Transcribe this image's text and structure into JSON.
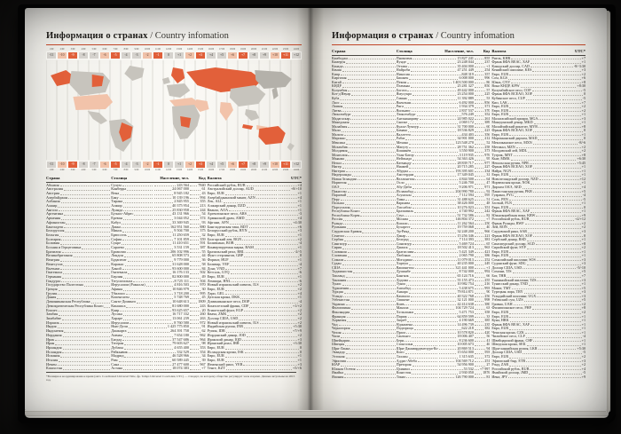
{
  "colors": {
    "accent": "#c6492a",
    "zone_orange": "#e2603a",
    "zone_peach": "#f2c3aa"
  },
  "title": {
    "ru": "Информация о странах",
    "en": "/ Country infomation"
  },
  "timezone": {
    "times": [
      "1:00",
      "2:00",
      "3:00",
      "4:00",
      "5:00",
      "6:00",
      "7:00",
      "8:00",
      "9:00",
      "10:00",
      "11:00",
      "12:00",
      "13:00",
      "14:00",
      "15:00",
      "16:00",
      "17:00",
      "18:00",
      "19:00",
      "20:00",
      "21:00",
      "22:00",
      "23:00",
      "24:00"
    ],
    "offsets": [
      "-11",
      "-10",
      "-9",
      "-8",
      "-7",
      "-6",
      "-5",
      "-4",
      "-3",
      "-2",
      "-1",
      "0",
      "+1",
      "+2",
      "+3",
      "+4",
      "+5",
      "+6",
      "+7",
      "+8",
      "+9",
      "+10",
      "+11",
      "+12"
    ],
    "highlight_strong": [
      "-9",
      "-5",
      "-1",
      "+3",
      "+7",
      "+11"
    ],
    "highlight_light": [
      "-10",
      "-6",
      "-2",
      "+2",
      "+6",
      "+10"
    ]
  },
  "table": {
    "headers": [
      "Страна",
      "Столица",
      "Население, чел.",
      "Код",
      "Валюта",
      "UTC*"
    ]
  },
  "left_page": {
    "rows": [
      [
        "Абхазия",
        "Сухум",
        "243 564",
        "7840",
        "Российский рубль, RUB",
        "+4"
      ],
      [
        "Австралия",
        "Канберра",
        "24 067 000",
        "61",
        "Австралийский доллар, AUD",
        "+8/+10"
      ],
      [
        "Австрия",
        "Вена",
        "8 945 182",
        "43",
        "Евро, EUR",
        "+1"
      ],
      [
        "Азербайджан",
        "Баку",
        "10 139 196",
        "994",
        "Азербайджанский манат, AZN",
        "+4"
      ],
      [
        "Албания",
        "Тирана",
        "2 845 955",
        "355",
        "Лек, ALL",
        "+1"
      ],
      [
        "Алжир",
        "Алжир",
        "40 375 954",
        "213",
        "Алжирский динар, DZD",
        "+1"
      ],
      [
        "Ангола",
        "Луанда",
        "25 830 958",
        "244",
        "Кванза, AOA",
        "+1"
      ],
      [
        "Аргентина",
        "Буэнос-Айрес",
        "43 131 966",
        "54",
        "Аргентинское песо, ARS",
        "-3"
      ],
      [
        "Армения",
        "Ереван",
        "3 044 052",
        "374",
        "Армянский драм, AMD",
        "+4"
      ],
      [
        "Афганистан",
        "Кабул",
        "33 369 945",
        "93",
        "Афгани, AFN",
        "+4:30"
      ],
      [
        "Бангладеш",
        "Дакка",
        "162 951 560",
        "880",
        "Бангладешская така, BDT",
        "+6"
      ],
      [
        "Белоруссия",
        "Минск",
        "9 504 700",
        "375",
        "Белорусский рубль, BYN",
        "+3"
      ],
      [
        "Бельгия",
        "Брюссель",
        "11 250 659",
        "32",
        "Евро, EUR",
        "+1"
      ],
      [
        "Болгария",
        "София",
        "7 101 859",
        "359",
        "Болгарский лев, BGN",
        "+2"
      ],
      [
        "Боливия",
        "Сукре",
        "11 410 651",
        "591",
        "Боливиано, BOB",
        "-4"
      ],
      [
        "Босния и Герцеговина",
        "Сараево",
        "3 531 159",
        "387",
        "Конвертируемая марка, BAM",
        "+1"
      ],
      [
        "Бразилия",
        "Бразилиа",
        "206 102 996",
        "55",
        "Бразильский реал, BRL",
        "-2/-5"
      ],
      [
        "Великобритания",
        "Лондон",
        "65 808 573",
        "44",
        "Фунт стерлингов, GBP",
        "0"
      ],
      [
        "Венгрия",
        "Будапешт",
        "9 779 000",
        "36",
        "Форинт, HUF",
        "+1"
      ],
      [
        "Венесуэла",
        "Каракас",
        "31 628 000",
        "58",
        "Боливар, VEF",
        "-4"
      ],
      [
        "Вьетнам",
        "Ханой",
        "93 600 000",
        "84",
        "Донг, VND",
        "+7"
      ],
      [
        "Гватемала",
        "Гватемала",
        "16 176 133",
        "502",
        "Кетсаль, GTQ",
        "-6"
      ],
      [
        "Германия",
        "Берлин",
        "82 800 000",
        "49",
        "Евро, EUR",
        "+1"
      ],
      [
        "Гондурас",
        "Тегусигальпа",
        "8 725 111",
        "504",
        "Лемпира, HNL",
        "-6"
      ],
      [
        "Государство Палестина",
        "Иерусалим (Рамалла)",
        "4 816 503",
        "970",
        "Новый израильский шекель, ILS",
        "+2"
      ],
      [
        "Греция",
        "Афины",
        "10 846 979",
        "30",
        "Евро, EUR",
        "+2"
      ],
      [
        "Грузия",
        "Тбилиси",
        "3 718 200",
        "995",
        "Лари, GEL",
        "+4"
      ],
      [
        "Дания",
        "Копенгаген",
        "5 748 769",
        "45",
        "Датская крона, DKK",
        "+1"
      ],
      [
        "Доминиканская Республика",
        "Санто-Доминго",
        "10 648 613",
        "1809",
        "Доминиканское песо, DOP",
        "-4"
      ],
      [
        "Демократическая Республика Конго",
        "Киншаса",
        "81 680 000",
        "243",
        "Конголезский франк, CDF",
        "+1/+2"
      ],
      [
        "Египет",
        "Каир",
        "93 625 657",
        "20",
        "Египетский фунт, EGP",
        "+2"
      ],
      [
        "Замбия",
        "Лусака",
        "16 717 332",
        "260",
        "Квача, ZMK",
        "+2"
      ],
      [
        "Зимбабве",
        "Хараре",
        "13 061 239",
        "263",
        "Доллар США, USD",
        "+2"
      ],
      [
        "Израиль",
        "Иерусалим",
        "8 760 580",
        "972",
        "Новый израильский шекель, ILS",
        "+2"
      ],
      [
        "Индия",
        "Нью-Дели",
        "1 425 775 850",
        "91",
        "Индийская рупия, INR",
        "+5:30"
      ],
      [
        "Индонезия",
        "Джакарта",
        "264 391 758",
        "62",
        "Рупия, IDR",
        "+7/+9"
      ],
      [
        "Иордания",
        "Амман",
        "7 654 180",
        "962",
        "Иорданский динар, JOD",
        "+2"
      ],
      [
        "Ирак",
        "Багдад",
        "37 547 686",
        "964",
        "Иракский динар, IQD",
        "+3"
      ],
      [
        "Иран",
        "Тегеран",
        "79 603 627",
        "98",
        "Иранский риал, IRR",
        "+3:30"
      ],
      [
        "Ирландия",
        "Дублин",
        "4 655 400",
        "353",
        "Евро, EUR",
        "0"
      ],
      [
        "Исландия",
        "Рейкьявик",
        "332 529",
        "354",
        "Исландская крона, ISK",
        "0"
      ],
      [
        "Испания",
        "Мадрид",
        "46 528 966",
        "34",
        "Евро, EUR",
        "+1"
      ],
      [
        "Италия",
        "Рим",
        "60 589 445",
        "39",
        "Евро, EUR",
        "+1"
      ],
      [
        "Йемен",
        "Сана",
        "27 477 600",
        "967",
        "Йеменский риал, YER",
        "+3"
      ],
      [
        "Казахстан",
        "Астана",
        "18 074 383",
        "+7",
        "Тенге, KZT",
        "+5/+6"
      ]
    ]
  },
  "right_page": {
    "rows": [
      [
        "Камбоджа",
        "Пномпень",
        "15 827 241",
        "855",
        "Риель, KHR",
        "+7"
      ],
      [
        "Камерун",
        "Яунде",
        "23 248 044",
        "237",
        "Франк КФА ВЕАС, XAF",
        "+1"
      ],
      [
        "Канада",
        "Оттава",
        "35 404 000",
        "+1",
        "Канадский доллар, CAD",
        "-8/-3:30"
      ],
      [
        "Кения",
        "Найроби",
        "47 251 449",
        "254",
        "Кенийский шиллинг, KES",
        "+3"
      ],
      [
        "Кипр",
        "Никосия",
        "848 319",
        "357",
        "Евро, EUR",
        "+2"
      ],
      [
        "Киргизия",
        "Бишкек",
        "6 008 000",
        "996",
        "Сом, KGS",
        "+6"
      ],
      [
        "Китай",
        "Пекин",
        "1 403 500 000",
        "86",
        "Юань, CNY",
        "+8"
      ],
      [
        "КНДР",
        "Пхеньян",
        "25 281 327",
        "850",
        "Вона КНДР, KPW",
        "+8:30"
      ],
      [
        "Колумбия",
        "Богота",
        "49 442 000",
        "57",
        "Колумбийское песо, COP",
        "-5"
      ],
      [
        "Кот-д'Ивуар",
        "Ямусукро",
        "23 254 000",
        "225",
        "Франк КФА ВСЕАО, XOF",
        "0"
      ],
      [
        "Куба",
        "Гавана",
        "11 392 889",
        "53",
        "Кубинское песо, CUP",
        "-5"
      ],
      [
        "Лаос",
        "Вьентьян",
        "6 492 000",
        "856",
        "Кип, LAK",
        "+7"
      ],
      [
        "Латвия",
        "Рига",
        "1 934 379",
        "371",
        "Евро, EUR",
        "+2"
      ],
      [
        "Литва",
        "Вильнюс",
        "2 837 537",
        "370",
        "Евро, EUR",
        "+2"
      ],
      [
        "Люксембург",
        "Люксембург",
        "576 249",
        "352",
        "Евро, EUR",
        "+1"
      ],
      [
        "Мадагаскар",
        "Антананариву",
        "24 985 022",
        "261",
        "Малагасийский ариари, MGA",
        "+3"
      ],
      [
        "Македония",
        "Скопье",
        "2 069 172",
        "389",
        "Македонский денар, MKD",
        "+1"
      ],
      [
        "Малайзия",
        "Куала-Лумпур",
        "31 700 000",
        "60",
        "Малайзийский ринггит, MYR",
        "+8"
      ],
      [
        "Мали",
        "Бамако",
        "18 536 829",
        "223",
        "Франк КФА ВСЕАО, XOF",
        "0"
      ],
      [
        "Мальта",
        "Валлетта",
        "434 403",
        "356",
        "Евро, EUR",
        "+1"
      ],
      [
        "Марокко",
        "Рабат",
        "34 901 000",
        "212",
        "Марокканский дирхам, MAD",
        "0"
      ],
      [
        "Мексика",
        "Мехико",
        "123 548 270",
        "52",
        "Мексиканское песо, MXN",
        "-8/-6"
      ],
      [
        "Мозамбик",
        "Мапуту",
        "28 751 362",
        "258",
        "Метикал, MZN",
        "+2"
      ],
      [
        "Молдавия",
        "Кишинёв",
        "3 550 900",
        "373",
        "Молдавский лей, MDL",
        "+2"
      ],
      [
        "Монголия",
        "Улан-Батор",
        "3 119 935",
        "976",
        "Тугрик, MNT",
        "+8"
      ],
      [
        "Мьянма",
        "Нейпьидо",
        "54 363 426",
        "95",
        "Кьят, MMK",
        "+6:30"
      ],
      [
        "Непал",
        "Катманду",
        "28 839 717",
        "977",
        "Непальская рупия, NPR",
        "+5:45"
      ],
      [
        "Нигер",
        "Ниамей",
        "20 715 285",
        "227",
        "Франк КФА ВСЕАО, XOF",
        "+1"
      ],
      [
        "Нигерия",
        "Абуджа",
        "193 395 601",
        "234",
        "Найра, NGN",
        "+1"
      ],
      [
        "Нидерланды",
        "Амстердам",
        "17 349 045",
        "31",
        "Евро, EUR",
        "+1"
      ],
      [
        "Новая Зеландия",
        "Веллингтон",
        "4 844 500",
        "64",
        "Новозеландский доллар, NZD",
        "+12"
      ],
      [
        "Норвегия",
        "Осло",
        "5 246 700",
        "47",
        "Норвежская крона, NOK",
        "+1"
      ],
      [
        "ОАЭ",
        "Абу-Даби",
        "9 206 971",
        "971",
        "Дирхам ОАЭ, AED",
        "+4"
      ],
      [
        "Пакистан",
        "Исламабад",
        "204 990 780",
        "92",
        "Пакистанская рупия, PKR",
        "+5"
      ],
      [
        "Парагвай",
        "Асунсьон",
        "7 112 594",
        "595",
        "Гуарани, PYG",
        "-4"
      ],
      [
        "Перу",
        "Лима",
        "31 488 625",
        "51",
        "Соль, PEN",
        "-5"
      ],
      [
        "Польша",
        "Варшава",
        "38 426 000",
        "48",
        "Злотый, PLN",
        "+1"
      ],
      [
        "Португалия",
        "Лиссабон",
        "10 276 023",
        "351",
        "Евро, EUR",
        "0"
      ],
      [
        "Республика Конго",
        "Браззавиль",
        "4 740 992",
        "242",
        "Франк КФА ВЕАС, XAF",
        "+1"
      ],
      [
        "Республика Корея",
        "Сеул",
        "51 732 586",
        "82",
        "Южнокорейская вона, KRW",
        "+9"
      ],
      [
        "Россия",
        "Москва",
        "146 804 372",
        "+7",
        "Российский рубль, RUB",
        "+2/+12"
      ],
      [
        "Руанда",
        "Кигали",
        "11 262 564",
        "250",
        "Франк Руанды, RWF",
        "+2"
      ],
      [
        "Румыния",
        "Бухарест",
        "19 759 068",
        "40",
        "Лей, RON",
        "+2"
      ],
      [
        "Саудовская Аравия",
        "Эр-Рияд",
        "32 248 200",
        "966",
        "Саудовский риял, SAR",
        "+3"
      ],
      [
        "Сенегал",
        "Дакар",
        "15 256 346",
        "221",
        "Франк КФА ВСЕАО, XOF",
        "0"
      ],
      [
        "Сербия",
        "Белград",
        "7 114 393",
        "381",
        "Сербский динар, RSD",
        "+1"
      ],
      [
        "Сингапур",
        "Сингапур",
        "5 469 724",
        "65",
        "Сингапурский доллар, SGD",
        "+8"
      ],
      [
        "Сирия",
        "Дамаск",
        "18 502 413",
        "963",
        "Сирийский фунт, SYP",
        "+2"
      ],
      [
        "Словакия",
        "Братислава",
        "5 421 349",
        "421",
        "Евро, EUR",
        "+1"
      ],
      [
        "Словения",
        "Любляна",
        "2 065 790",
        "386",
        "Евро, EUR",
        "+1"
      ],
      [
        "Сомали",
        "Могадишо",
        "11 079 013",
        "252",
        "Сомалийский шиллинг, SOS",
        "+3"
      ],
      [
        "Судан",
        "Хартум",
        "40 235 000",
        "249",
        "Суданский фунт, SDG",
        "+3"
      ],
      [
        "США",
        "Вашингтон",
        "321 441 000",
        "+1",
        "Доллар США, USD",
        "-5/-10"
      ],
      [
        "Таджикистан",
        "Душанбе",
        "8 742 000",
        "992",
        "Сомони, TJS",
        "+5"
      ],
      [
        "Таиланд",
        "Бангкок",
        "65 124 716",
        "66",
        "Бат, THB",
        "+7"
      ],
      [
        "Танзания",
        "Додома",
        "55 155 473",
        "255",
        "Танзанийский шиллинг, TZS",
        "+3"
      ],
      [
        "Тунис",
        "Тунис",
        "10 982 754",
        "216",
        "Тунисский динар, TND",
        "+1"
      ],
      [
        "Туркмения",
        "Ашхабад",
        "5 438 675",
        "993",
        "Манат, TMT",
        "+5"
      ],
      [
        "Турция",
        "Анкара",
        "79 814 871",
        "90",
        "Турецкая лира, TRY",
        "+3"
      ],
      [
        "Уганда",
        "Кампала",
        "40 322 768",
        "256",
        "Угандийский шиллинг, UGX",
        "+3"
      ],
      [
        "Узбекистан",
        "Ташкент",
        "32 121 000",
        "998",
        "Узбекский сум, UZS",
        "+5"
      ],
      [
        "Украина",
        "Киев",
        "42 414 638",
        "380",
        "Гривна, UAH",
        "+2"
      ],
      [
        "Филиппины",
        "Манила",
        "104 729 724",
        "63",
        "Филиппинское песо, PHP",
        "+8"
      ],
      [
        "Финляндия",
        "Хельсинки",
        "5 471 753",
        "358",
        "Евро, EUR",
        "+2"
      ],
      [
        "Франция",
        "Париж",
        "64 859 599",
        "33",
        "Евро, EUR",
        "+1"
      ],
      [
        "Хорватия",
        "Загреб",
        "4 190 669",
        "385",
        "Куна, HRK",
        "+1"
      ],
      [
        "Чад",
        "Нджамена",
        "14 496 739",
        "235",
        "Франк КФА ВЕАС, XAF",
        "+1"
      ],
      [
        "Черногория",
        "Подгорица",
        "622 218",
        "382",
        "Евро, EUR",
        "+1"
      ],
      [
        "Чехия",
        "Прага",
        "10 578 820",
        "420",
        "Чешская крона, CZK",
        "+1"
      ],
      [
        "Чили",
        "Сантьяго",
        "18 006 407",
        "56",
        "Чилийское песо, CLP",
        "-4"
      ],
      [
        "Швейцария",
        "Берн",
        "8 236 600",
        "41",
        "Швейцарский франк, CHF",
        "+1"
      ],
      [
        "Швеция",
        "Стокгольм",
        "10 005 673",
        "46",
        "Шведская крона, SEK",
        "+1"
      ],
      [
        "Шри-Ланка",
        "Шри-Джаяварденепура-Котте",
        "20 869 513",
        "94",
        "Шри-ланкийская рупия, LKR",
        "+5:30"
      ],
      [
        "Эквадор",
        "Кито",
        "15 654 000",
        "593",
        "Доллар США, USD",
        "-5"
      ],
      [
        "Эстония",
        "Таллин",
        "1 315 635",
        "372",
        "Евро, EUR",
        "+2"
      ],
      [
        "Эфиопия",
        "Аддис-Абеба",
        "104 569 712",
        "251",
        "Эфиопский быр, ETB",
        "+3"
      ],
      [
        "ЮАР",
        "Претория",
        "54 956 900",
        "27",
        "Рэнд, ZAR",
        "+2"
      ],
      [
        "Южная Осетия",
        "Цхинвал",
        "53 532",
        "+7 997",
        "Российский рубль, RUB",
        "+4"
      ],
      [
        "Ямайка",
        "Кингстон",
        "2 930 050",
        "1876",
        "Ямайский доллар, JMD",
        "-5"
      ],
      [
        "Япония",
        "Токио",
        "126 790 000",
        "81",
        "Иена, JPY",
        "+9"
      ]
    ]
  },
  "footnote": "*Всемирное координированное время (англ. Coordinated Universal Time, фр. Temps Universel Coordonné, UTC) — стандарт, по которому общество регулирует часы и время. Данные актуальны на 2015 год."
}
